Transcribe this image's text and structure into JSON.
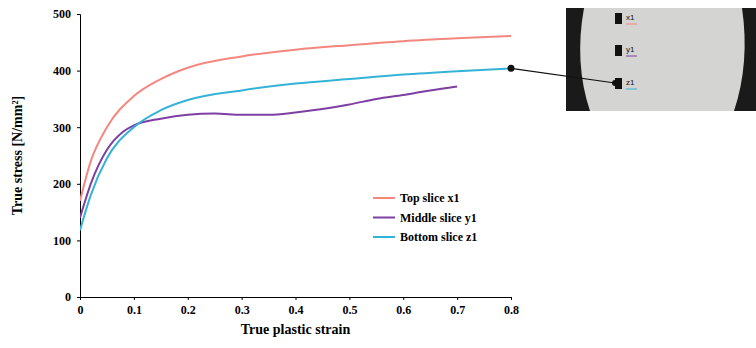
{
  "chart_data": {
    "type": "line",
    "x_label": "True plastic strain",
    "y_label": "True stress [N/mm²]",
    "xlim": [
      0,
      0.8
    ],
    "ylim": [
      0,
      500
    ],
    "xticks": [
      0,
      0.1,
      0.2,
      0.3,
      0.4,
      0.5,
      0.6,
      0.7,
      0.8
    ],
    "yticks": [
      0,
      100,
      200,
      300,
      400,
      500
    ],
    "grid": false,
    "legend": "right",
    "annotations": [
      "x1",
      "y1",
      "z1"
    ],
    "series": [
      {
        "name": "Top slice x1",
        "color": "#f4877f",
        "x": [
          0,
          0.02,
          0.05,
          0.1,
          0.15,
          0.2,
          0.3,
          0.4,
          0.5,
          0.6,
          0.7,
          0.8
        ],
        "values": [
          170,
          240,
          300,
          355,
          385,
          405,
          425,
          437,
          445,
          452,
          457,
          461
        ]
      },
      {
        "name": "Middle slice y1",
        "color": "#7e3fa3",
        "x": [
          0,
          0.02,
          0.05,
          0.08,
          0.1,
          0.15,
          0.2,
          0.25,
          0.3,
          0.35,
          0.4,
          0.45,
          0.5,
          0.55,
          0.6,
          0.62,
          0.65,
          0.7
        ],
        "values": [
          140,
          200,
          260,
          292,
          303,
          315,
          322,
          324,
          322,
          322,
          326,
          332,
          340,
          350,
          357,
          360,
          365,
          372
        ]
      },
      {
        "name": "Bottom slice z1",
        "color": "#35b3d6",
        "x": [
          0,
          0.02,
          0.05,
          0.1,
          0.15,
          0.2,
          0.3,
          0.4,
          0.5,
          0.6,
          0.7,
          0.8
        ],
        "values": [
          118,
          180,
          245,
          300,
          330,
          348,
          365,
          377,
          385,
          393,
          399,
          404
        ]
      }
    ]
  }
}
